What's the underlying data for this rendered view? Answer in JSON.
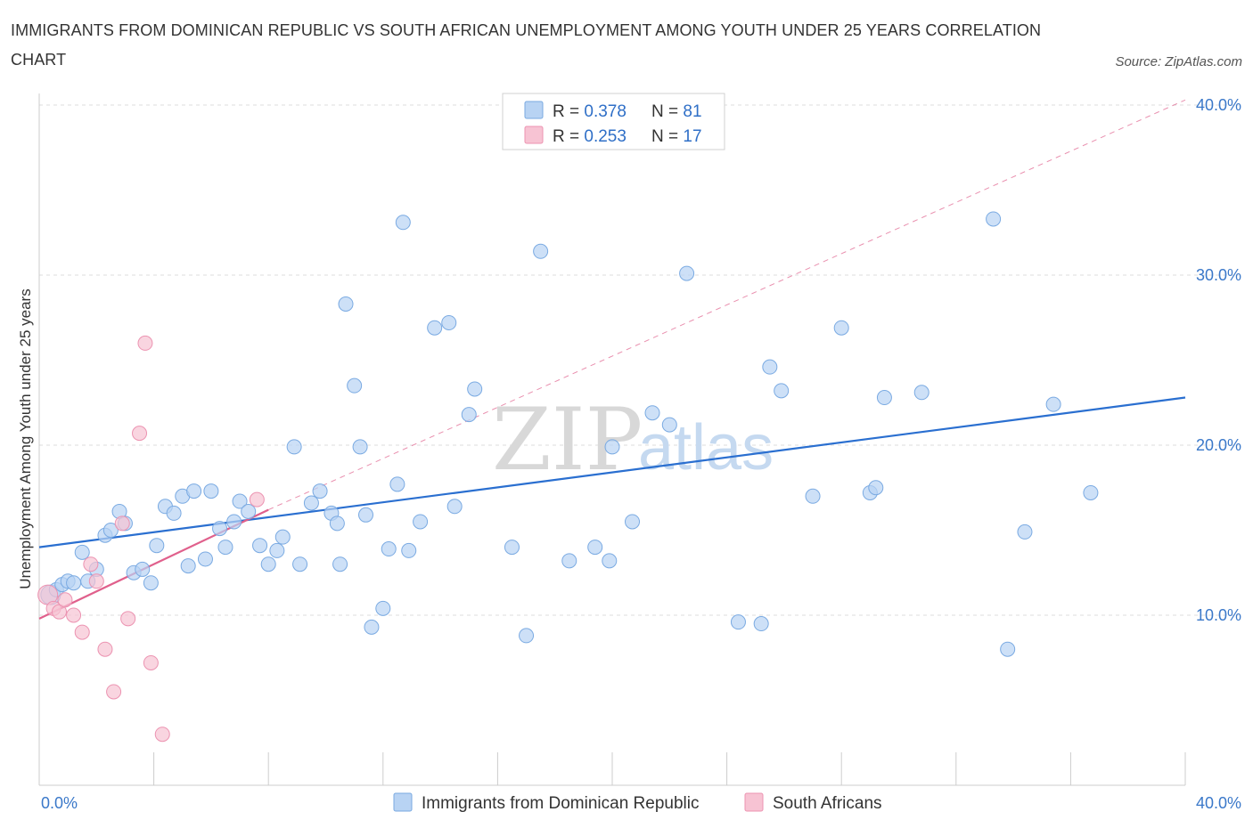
{
  "title": "IMMIGRANTS FROM DOMINICAN REPUBLIC VS SOUTH AFRICAN UNEMPLOYMENT AMONG YOUTH UNDER 25 YEARS CORRELATION CHART",
  "source": "Source: ZipAtlas.com",
  "watermark": {
    "part1": "ZIP",
    "part2": "atlas"
  },
  "colors": {
    "blue_fill": "#b8d3f3",
    "blue_stroke": "#7aaae2",
    "blue_line": "#2a6fd0",
    "pink_fill": "#f7c3d3",
    "pink_stroke": "#ec93b1",
    "pink_line": "#e0608c",
    "grid": "#dddddd",
    "axis_text": "#3a78c9"
  },
  "legend": {
    "r_label": "R = ",
    "n_label": "N = ",
    "series": [
      {
        "r": "0.378",
        "n": "81"
      },
      {
        "r": "0.253",
        "n": "17"
      }
    ]
  },
  "chart_data": {
    "type": "scatter",
    "title": "IMMIGRANTS FROM DOMINICAN REPUBLIC VS SOUTH AFRICAN UNEMPLOYMENT AMONG YOUTH UNDER 25 YEARS CORRELATION CHART",
    "xlabel": "",
    "ylabel": "Unemployment Among Youth under 25 years",
    "xlim": [
      0,
      40
    ],
    "ylim": [
      0,
      40
    ],
    "x_tick_labels": [
      "0.0%",
      "40.0%"
    ],
    "y_ticks": [
      10,
      20,
      30,
      40
    ],
    "y_tick_labels": [
      "10.0%",
      "20.0%",
      "30.0%",
      "40.0%"
    ],
    "grid": true,
    "legend_position": "top-center",
    "series": [
      {
        "name": "Immigrants from Dominican Republic",
        "r": 0.378,
        "n": 81,
        "trend": {
          "x": [
            0,
            40
          ],
          "y": [
            14.0,
            22.8
          ],
          "style": "solid"
        },
        "points": [
          [
            0.4,
            11.2
          ],
          [
            0.6,
            11.5
          ],
          [
            0.8,
            11.8
          ],
          [
            1.0,
            12.0
          ],
          [
            1.2,
            11.9
          ],
          [
            1.5,
            13.7
          ],
          [
            1.7,
            12.0
          ],
          [
            2.0,
            12.7
          ],
          [
            2.3,
            14.7
          ],
          [
            2.5,
            15.0
          ],
          [
            2.8,
            16.1
          ],
          [
            3.0,
            15.4
          ],
          [
            3.3,
            12.5
          ],
          [
            3.6,
            12.7
          ],
          [
            3.9,
            11.9
          ],
          [
            4.1,
            14.1
          ],
          [
            4.4,
            16.4
          ],
          [
            4.7,
            16.0
          ],
          [
            5.0,
            17.0
          ],
          [
            5.2,
            12.9
          ],
          [
            5.4,
            17.3
          ],
          [
            5.8,
            13.3
          ],
          [
            6.0,
            17.3
          ],
          [
            6.3,
            15.1
          ],
          [
            6.5,
            14.0
          ],
          [
            6.8,
            15.5
          ],
          [
            7.0,
            16.7
          ],
          [
            7.3,
            16.1
          ],
          [
            7.7,
            14.1
          ],
          [
            8.0,
            13.0
          ],
          [
            8.3,
            13.8
          ],
          [
            8.5,
            14.6
          ],
          [
            8.9,
            19.9
          ],
          [
            9.1,
            13.0
          ],
          [
            9.5,
            16.6
          ],
          [
            9.8,
            17.3
          ],
          [
            10.2,
            16.0
          ],
          [
            10.4,
            15.4
          ],
          [
            10.5,
            13.0
          ],
          [
            10.7,
            28.3
          ],
          [
            11.0,
            23.5
          ],
          [
            11.2,
            19.9
          ],
          [
            11.4,
            15.9
          ],
          [
            11.6,
            9.3
          ],
          [
            12.0,
            10.4
          ],
          [
            12.2,
            13.9
          ],
          [
            12.5,
            17.7
          ],
          [
            12.7,
            33.1
          ],
          [
            12.9,
            13.8
          ],
          [
            13.3,
            15.5
          ],
          [
            13.8,
            26.9
          ],
          [
            14.3,
            27.2
          ],
          [
            14.5,
            16.4
          ],
          [
            15.0,
            21.8
          ],
          [
            15.2,
            23.3
          ],
          [
            16.5,
            14.0
          ],
          [
            17.0,
            8.8
          ],
          [
            17.5,
            31.4
          ],
          [
            18.5,
            13.2
          ],
          [
            19.4,
            14.0
          ],
          [
            19.9,
            13.2
          ],
          [
            20.0,
            19.9
          ],
          [
            20.7,
            15.5
          ],
          [
            21.4,
            21.9
          ],
          [
            22.0,
            21.2
          ],
          [
            22.6,
            30.1
          ],
          [
            24.4,
            9.6
          ],
          [
            25.2,
            9.5
          ],
          [
            25.5,
            24.6
          ],
          [
            25.9,
            23.2
          ],
          [
            27.0,
            17.0
          ],
          [
            28.0,
            26.9
          ],
          [
            29.0,
            17.2
          ],
          [
            29.2,
            17.5
          ],
          [
            29.5,
            22.8
          ],
          [
            30.8,
            23.1
          ],
          [
            33.3,
            33.3
          ],
          [
            33.8,
            8.0
          ],
          [
            34.4,
            14.9
          ],
          [
            35.4,
            22.4
          ],
          [
            36.7,
            17.2
          ]
        ]
      },
      {
        "name": "South Africans",
        "r": 0.253,
        "n": 17,
        "trend_solid": {
          "x": [
            0,
            8.0
          ],
          "y": [
            9.8,
            16.2
          ],
          "style": "solid"
        },
        "trend_dashed": {
          "x": [
            8.0,
            40
          ],
          "y": [
            16.2,
            40.3
          ],
          "style": "dashed"
        },
        "points": [
          [
            0.3,
            11.2
          ],
          [
            0.5,
            10.4
          ],
          [
            0.7,
            10.2
          ],
          [
            0.9,
            10.9
          ],
          [
            1.2,
            10.0
          ],
          [
            1.5,
            9.0
          ],
          [
            1.8,
            13.0
          ],
          [
            2.0,
            12.0
          ],
          [
            2.3,
            8.0
          ],
          [
            2.6,
            5.5
          ],
          [
            2.9,
            15.4
          ],
          [
            3.1,
            9.8
          ],
          [
            3.5,
            20.7
          ],
          [
            3.7,
            26.0
          ],
          [
            3.9,
            7.2
          ],
          [
            4.3,
            3.0
          ],
          [
            7.6,
            16.8
          ]
        ]
      }
    ]
  }
}
